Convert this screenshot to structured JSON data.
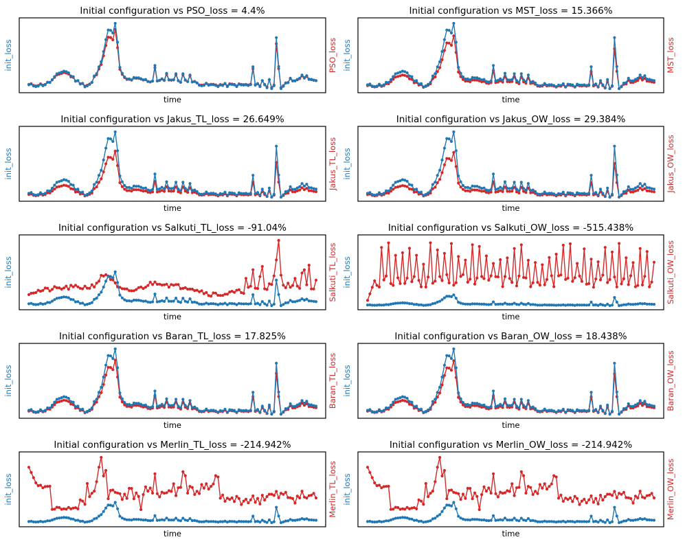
{
  "colors": {
    "init": "#1f77b4",
    "config": "#d62728"
  },
  "chart_data": [
    {
      "type": "line",
      "title": "Initial configuration vs PSO_loss = 4.4%",
      "xlabel": "time",
      "ylabel_left": "init_loss",
      "ylabel_right": "PSO_loss",
      "series": [
        {
          "name": "init_loss",
          "axis": "left",
          "shape": "base",
          "scale": 1.0,
          "offset": 0.0
        },
        {
          "name": "PSO_loss",
          "axis": "right",
          "shape": "base",
          "scale": 0.86,
          "offset": 0.015
        }
      ]
    },
    {
      "type": "line",
      "title": "Initial configuration vs MST_loss = 15.366%",
      "xlabel": "time",
      "ylabel_left": "init_loss",
      "ylabel_right": "MST_loss",
      "series": [
        {
          "name": "init_loss",
          "axis": "left",
          "shape": "base",
          "scale": 1.0,
          "offset": 0.0
        },
        {
          "name": "MST_loss",
          "axis": "right",
          "shape": "base",
          "scale": 0.78,
          "offset": 0.0
        }
      ]
    },
    {
      "type": "line",
      "title": "Initial configuration vs Jakus_TL_loss = 26.649%",
      "xlabel": "time",
      "ylabel_left": "init_loss",
      "ylabel_right": "Jakus_TL_loss",
      "series": [
        {
          "name": "init_loss",
          "axis": "left",
          "shape": "base",
          "scale": 1.0,
          "offset": 0.0
        },
        {
          "name": "Jakus_TL_loss",
          "axis": "right",
          "shape": "base",
          "scale": 0.68,
          "offset": 0.0
        }
      ]
    },
    {
      "type": "line",
      "title": "Initial configuration vs Jakus_OW_loss = 29.384%",
      "xlabel": "time",
      "ylabel_left": "init_loss",
      "ylabel_right": "Jakus_OW_loss",
      "series": [
        {
          "name": "init_loss",
          "axis": "left",
          "shape": "base",
          "scale": 1.0,
          "offset": 0.0
        },
        {
          "name": "Jakus_OW_loss",
          "axis": "right",
          "shape": "base",
          "scale": 0.66,
          "offset": 0.0
        }
      ]
    },
    {
      "type": "line",
      "title": "Initial configuration vs Salkuti_TL_loss = -91.04%",
      "xlabel": "time",
      "ylabel_left": "init_loss",
      "ylabel_right": "Salkuti_TL_loss",
      "series": [
        {
          "name": "init_loss",
          "axis": "left",
          "shape": "base",
          "scale": 0.5,
          "offset": 0.0
        },
        {
          "name": "Salkuti_TL_loss",
          "axis": "right",
          "shape": "salkuti_tl",
          "scale": 1.0,
          "offset": 0.0
        }
      ]
    },
    {
      "type": "line",
      "title": "Initial configuration vs Salkuti_OW_loss = -515.438%",
      "xlabel": "time",
      "ylabel_left": "init_loss",
      "ylabel_right": "Salkuti_OW_loss",
      "series": [
        {
          "name": "init_loss",
          "axis": "left",
          "shape": "base",
          "scale": 0.16,
          "offset": 0.0
        },
        {
          "name": "Salkuti_OW_loss",
          "axis": "right",
          "shape": "salkuti_ow",
          "scale": 1.0,
          "offset": 0.0
        }
      ]
    },
    {
      "type": "line",
      "title": "Initial configuration vs Baran_TL_loss = 17.825%",
      "xlabel": "time",
      "ylabel_left": "init_loss",
      "ylabel_right": "Baran_TL_loss",
      "series": [
        {
          "name": "init_loss",
          "axis": "left",
          "shape": "base",
          "scale": 1.0,
          "offset": 0.0
        },
        {
          "name": "Baran_TL_loss",
          "axis": "right",
          "shape": "base",
          "scale": 0.8,
          "offset": 0.0
        }
      ]
    },
    {
      "type": "line",
      "title": "Initial configuration vs Baran_OW_loss = 18.438%",
      "xlabel": "time",
      "ylabel_left": "init_loss",
      "ylabel_right": "Baran_OW_loss",
      "series": [
        {
          "name": "init_loss",
          "axis": "left",
          "shape": "base",
          "scale": 1.0,
          "offset": 0.0
        },
        {
          "name": "Baran_OW_loss",
          "axis": "right",
          "shape": "base",
          "scale": 0.79,
          "offset": 0.0
        }
      ]
    },
    {
      "type": "line",
      "title": "Initial configuration vs Merlin_TL_loss = -214.942%",
      "xlabel": "time",
      "ylabel_left": "init_loss",
      "ylabel_right": "Merlin_TL_loss",
      "series": [
        {
          "name": "init_loss",
          "axis": "left",
          "shape": "base",
          "scale": 0.3,
          "offset": 0.0
        },
        {
          "name": "Merlin_TL_loss",
          "axis": "right",
          "shape": "merlin",
          "scale": 1.0,
          "offset": 0.0
        }
      ]
    },
    {
      "type": "line",
      "title": "Initial configuration vs Merlin_OW_loss = -214.942%",
      "xlabel": "time",
      "ylabel_left": "init_loss",
      "ylabel_right": "Merlin_OW_loss",
      "series": [
        {
          "name": "init_loss",
          "axis": "left",
          "shape": "base",
          "scale": 0.3,
          "offset": 0.0
        },
        {
          "name": "Merlin_OW_loss",
          "axis": "right",
          "shape": "merlin",
          "scale": 1.0,
          "offset": 0.0
        }
      ]
    }
  ]
}
